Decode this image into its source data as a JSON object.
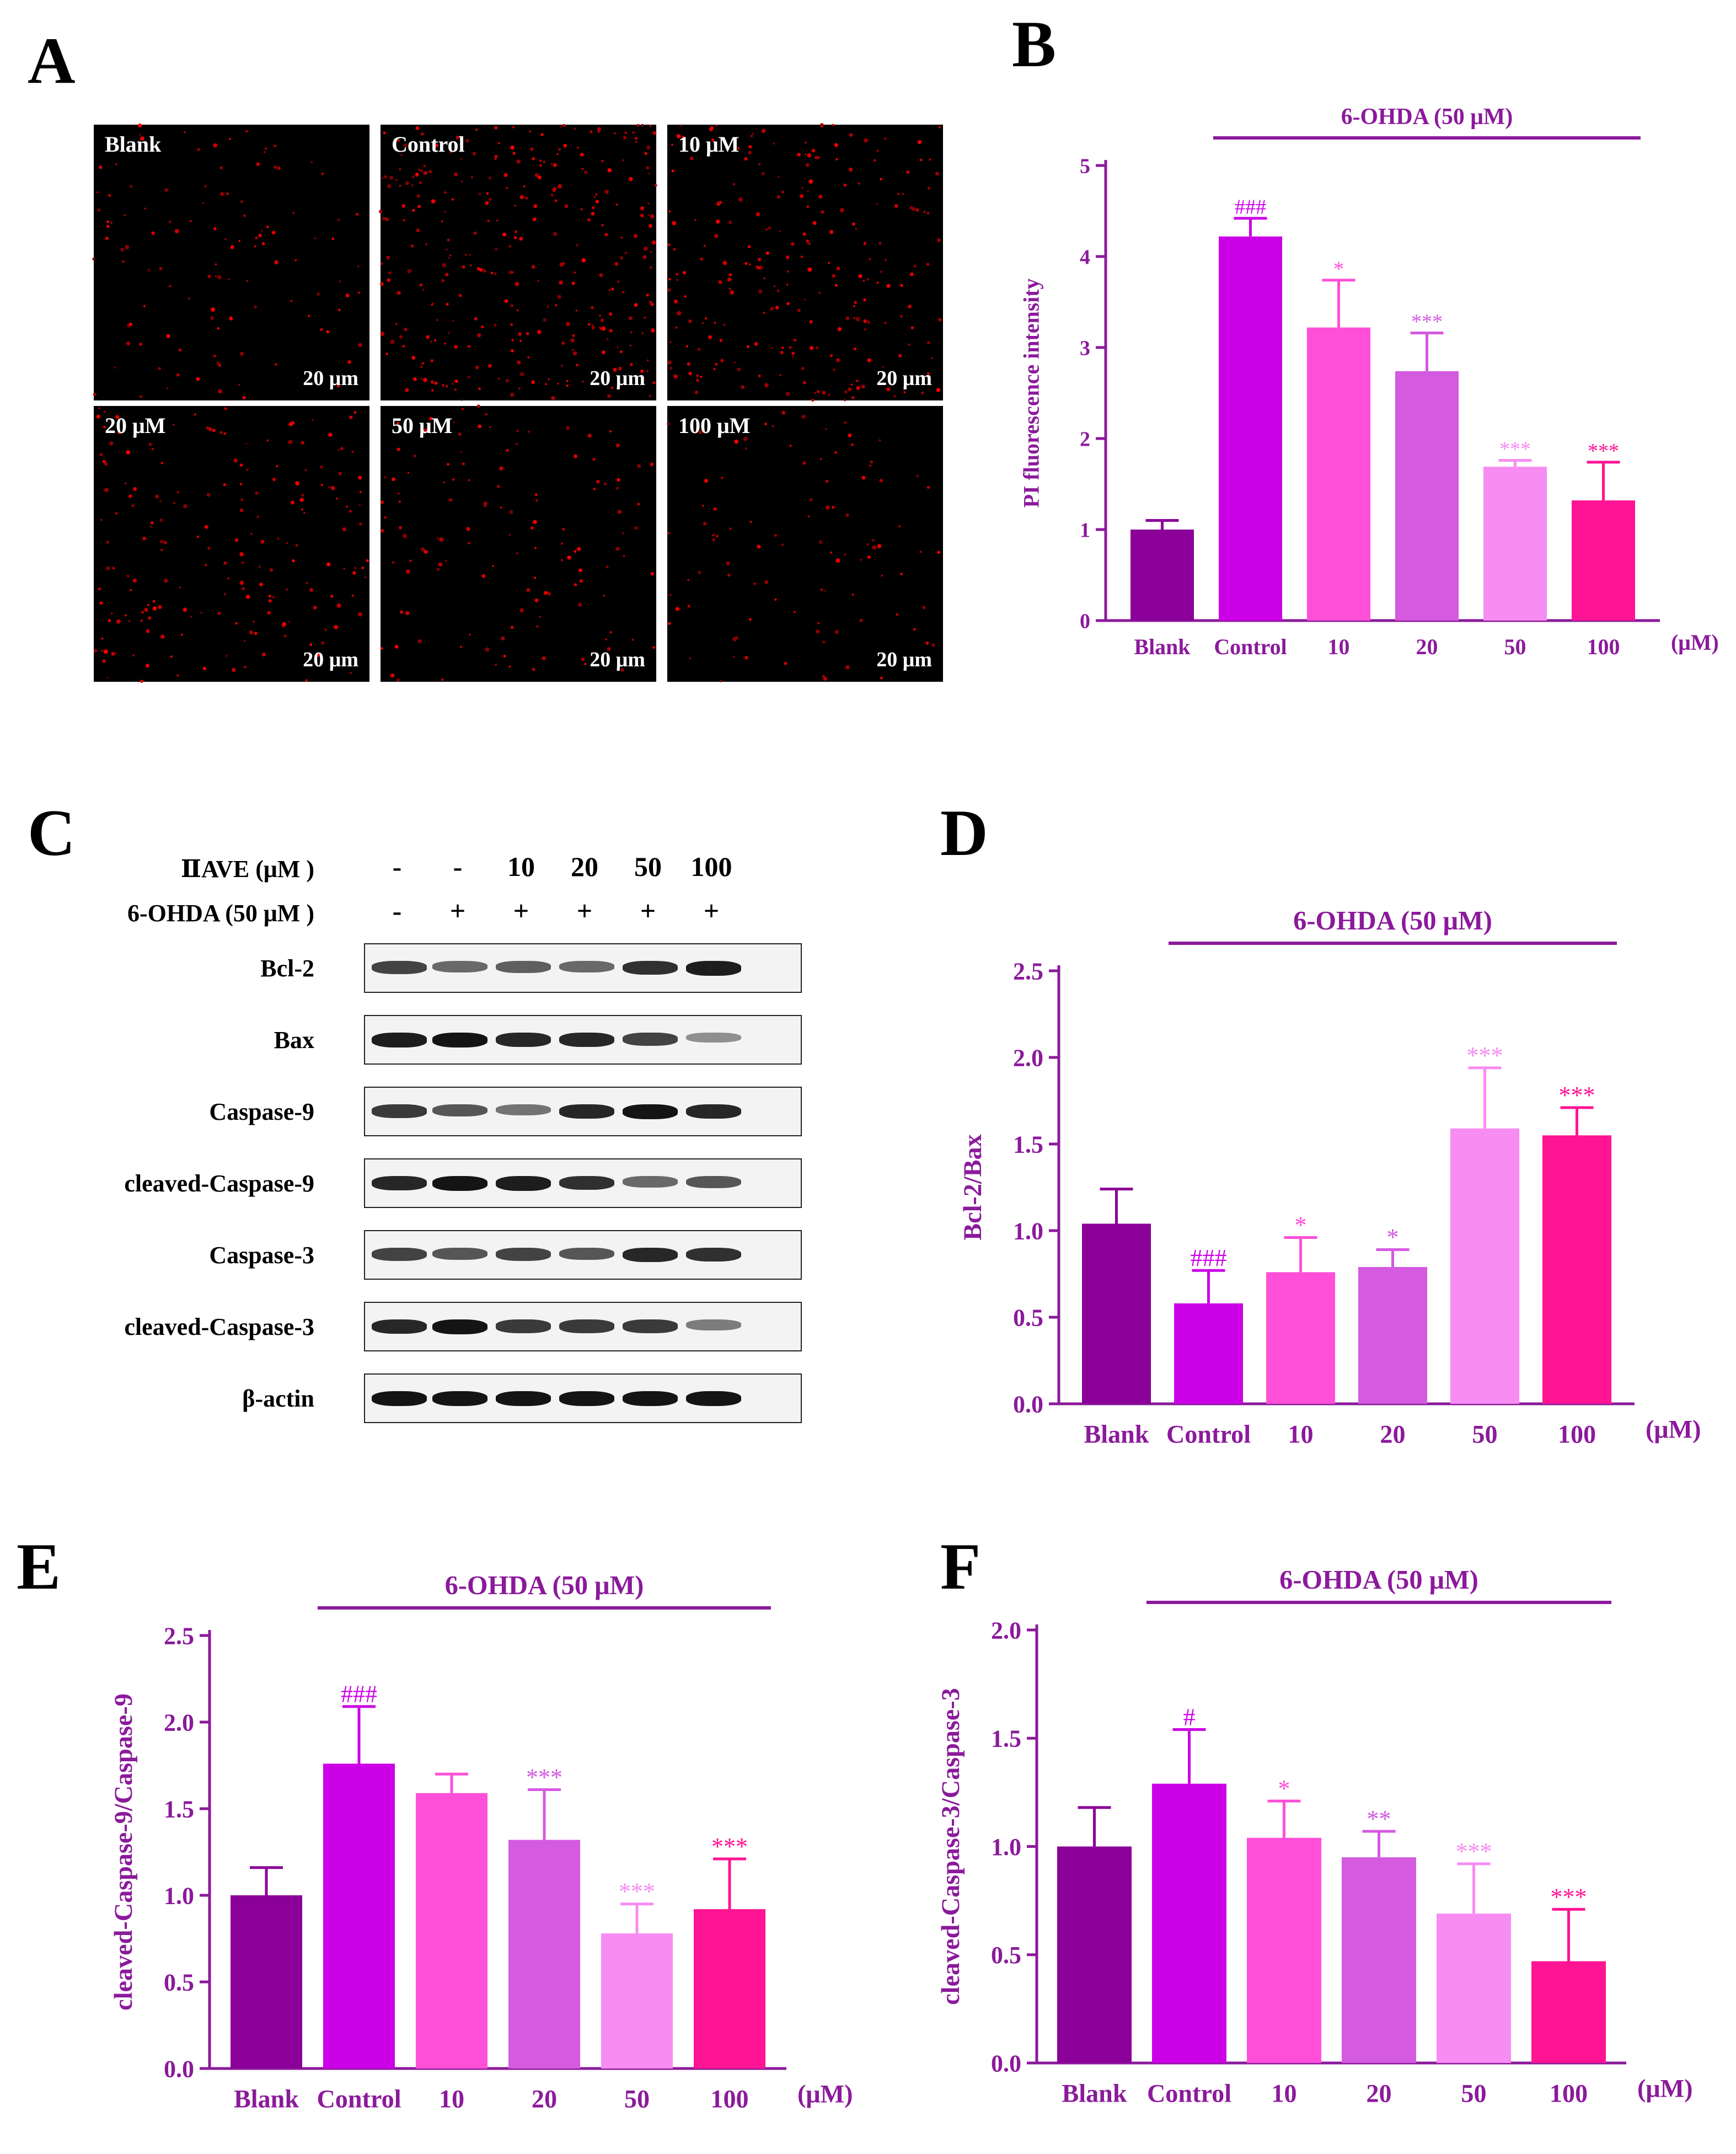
{
  "panels": {
    "A": {
      "letter": "A",
      "images": [
        {
          "label": "Blank",
          "scale": "20 μm",
          "density": 0.35
        },
        {
          "label": "Control",
          "scale": "20 μm",
          "density": 1.0
        },
        {
          "label": "10 μM",
          "scale": "20 μm",
          "density": 0.75
        },
        {
          "label": "20 μM",
          "scale": "20 μm",
          "density": 0.6
        },
        {
          "label": "50 μM",
          "scale": "20 μm",
          "density": 0.4
        },
        {
          "label": "100 μM",
          "scale": "20 μm",
          "density": 0.3
        }
      ]
    },
    "C": {
      "letter": "C",
      "rows": [
        {
          "label": "ⅡAVE (μM )",
          "values": [
            "-",
            "-",
            "10",
            "20",
            "50",
            "100"
          ]
        },
        {
          "label": "6-OHDA (50 μM )",
          "values": [
            "-",
            "+",
            "+",
            "+",
            "+",
            "+"
          ]
        }
      ],
      "blots": [
        {
          "label": "Bcl-2",
          "intensity": [
            0.7,
            0.5,
            0.55,
            0.5,
            0.8,
            0.9
          ]
        },
        {
          "label": "Bax",
          "intensity": [
            0.9,
            0.95,
            0.85,
            0.85,
            0.7,
            0.3
          ]
        },
        {
          "label": "Caspase-9",
          "intensity": [
            0.75,
            0.6,
            0.45,
            0.85,
            0.95,
            0.85
          ]
        },
        {
          "label": "cleaved-Caspase-9",
          "intensity": [
            0.85,
            0.95,
            0.9,
            0.8,
            0.5,
            0.6
          ]
        },
        {
          "label": "Caspase-3",
          "intensity": [
            0.7,
            0.6,
            0.7,
            0.6,
            0.85,
            0.8
          ]
        },
        {
          "label": "cleaved-Caspase-3",
          "intensity": [
            0.85,
            0.95,
            0.75,
            0.75,
            0.75,
            0.4
          ]
        },
        {
          "label": "β-actin",
          "intensity": [
            0.95,
            0.95,
            0.95,
            0.95,
            0.95,
            0.95
          ]
        }
      ]
    }
  },
  "chart_data": [
    {
      "panel": "B",
      "type": "bar",
      "bracket_label": "6-OHDA (50 μM)",
      "ylabel": "PI  fluorescence intensity",
      "xlabel": "(μM)",
      "categories": [
        "Blank",
        "Control",
        "10",
        "20",
        "50",
        "100"
      ],
      "values": [
        1.0,
        4.22,
        3.22,
        2.74,
        1.69,
        1.32
      ],
      "errors": [
        0.1,
        0.2,
        0.52,
        0.42,
        0.07,
        0.42
      ],
      "annotations": [
        "",
        "###",
        "*",
        "***",
        "***",
        "***"
      ],
      "ylim": [
        0,
        5
      ],
      "yticks": [
        "0",
        "1",
        "2",
        "3",
        "4",
        "5"
      ]
    },
    {
      "panel": "D",
      "type": "bar",
      "bracket_label": "6-OHDA (50 μM)",
      "ylabel": "Bcl-2/Bax",
      "xlabel": "(μM)",
      "categories": [
        "Blank",
        "Control",
        "10",
        "20",
        "50",
        "100"
      ],
      "values": [
        1.04,
        0.58,
        0.76,
        0.79,
        1.59,
        1.55
      ],
      "errors": [
        0.2,
        0.19,
        0.2,
        0.1,
        0.35,
        0.16
      ],
      "annotations": [
        "",
        "###",
        "*",
        "*",
        "***",
        "***"
      ],
      "ylim": [
        0,
        2.5
      ],
      "yticks": [
        "0.0",
        "0.5",
        "1.0",
        "1.5",
        "2.0",
        "2.5"
      ]
    },
    {
      "panel": "E",
      "type": "bar",
      "bracket_label": "6-OHDA (50 μM)",
      "ylabel": "cleaved-Caspase-9/Caspase-9",
      "xlabel": "(μM)",
      "categories": [
        "Blank",
        "Control",
        "10",
        "20",
        "50",
        "100"
      ],
      "values": [
        1.0,
        1.76,
        1.59,
        1.32,
        0.78,
        0.92
      ],
      "errors": [
        0.16,
        0.33,
        0.11,
        0.29,
        0.17,
        0.29
      ],
      "annotations": [
        "",
        "###",
        "",
        "***",
        "***",
        "***"
      ],
      "ylim": [
        0,
        2.5
      ],
      "yticks": [
        "0.0",
        "0.5",
        "1.0",
        "1.5",
        "2.0",
        "2.5"
      ]
    },
    {
      "panel": "F",
      "type": "bar",
      "bracket_label": "6-OHDA (50 μM)",
      "ylabel": "cleaved-Caspase-3/Caspase-3",
      "xlabel": "(μM)",
      "categories": [
        "Blank",
        "Control",
        "10",
        "20",
        "50",
        "100"
      ],
      "values": [
        1.0,
        1.29,
        1.04,
        0.95,
        0.69,
        0.47
      ],
      "errors": [
        0.18,
        0.25,
        0.17,
        0.12,
        0.23,
        0.24
      ],
      "annotations": [
        "",
        "#",
        "*",
        "**",
        "***",
        "***"
      ],
      "ylim": [
        0,
        2.0
      ],
      "yticks": [
        "0.0",
        "0.5",
        "1.0",
        "1.5",
        "2.0"
      ]
    }
  ],
  "colors": {
    "axis": "#8B1A9B",
    "bars": [
      "#8B0099",
      "#CC00E6",
      "#FF4FD8",
      "#D45AE0",
      "#F78CF2",
      "#FF1493"
    ]
  }
}
